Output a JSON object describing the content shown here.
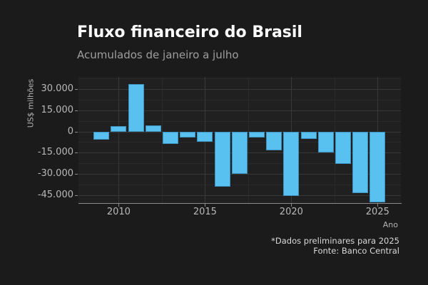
{
  "header": {
    "title": "Fluxo financeiro do Brasil",
    "subtitle": "Acumulados de janeiro a julho"
  },
  "footer": {
    "note": "*Dados preliminares para 2025",
    "source": "Fonte: Banco Central"
  },
  "chart_data": {
    "type": "bar",
    "title": "Fluxo financeiro do Brasil",
    "subtitle": "Acumulados de janeiro a julho",
    "xlabel": "Ano",
    "ylabel": "US$ milhões",
    "x": [
      2009,
      2010,
      2011,
      2012,
      2013,
      2014,
      2015,
      2016,
      2017,
      2018,
      2019,
      2020,
      2021,
      2022,
      2023,
      2024,
      2025
    ],
    "values": [
      -6000,
      4000,
      33500,
      4500,
      -9000,
      -4000,
      -7500,
      -39000,
      -30000,
      -4000,
      -13500,
      -45500,
      -5000,
      -15000,
      -23000,
      -43500,
      -50000
    ],
    "x_ticks": [
      2010,
      2015,
      2020,
      2025
    ],
    "x_tick_labels": [
      "2010",
      "2015",
      "2020",
      "2025"
    ],
    "x_minor_ticks": [
      2012.5,
      2017.5,
      2022.5
    ],
    "y_ticks": [
      30000,
      15000,
      0,
      -15000,
      -30000,
      -45000
    ],
    "y_tick_labels": [
      "30.000",
      "15.000",
      "0",
      "-15.000",
      "-30.000",
      "-45.000"
    ],
    "y_minor_ticks": [
      37500,
      22500,
      7500,
      -7500,
      -22500,
      -37500
    ],
    "ylim": [
      -51000,
      38500
    ],
    "xlim": [
      2007.67,
      2026.35
    ],
    "grid": {
      "horizontal_major": true,
      "horizontal_minor": true,
      "vertical_major": true,
      "vertical_minor": true
    },
    "legend": "none",
    "bar_color": "#58c1f0"
  },
  "colors": {
    "background": "#1b1b1b",
    "panel": "#202020",
    "grid_major": "#383838",
    "grid_minor": "#2a2a2a",
    "axis_line": "#8c8c8c",
    "bar_fill": "#58c1f0",
    "bar_border": "#3d8fbe",
    "title_text": "#ffffff",
    "subtitle_text": "#9e9e9e",
    "tick_text": "#b8b8b8",
    "axis_title_text": "#b4b4b4",
    "caption_text": "#d9d9d9"
  }
}
